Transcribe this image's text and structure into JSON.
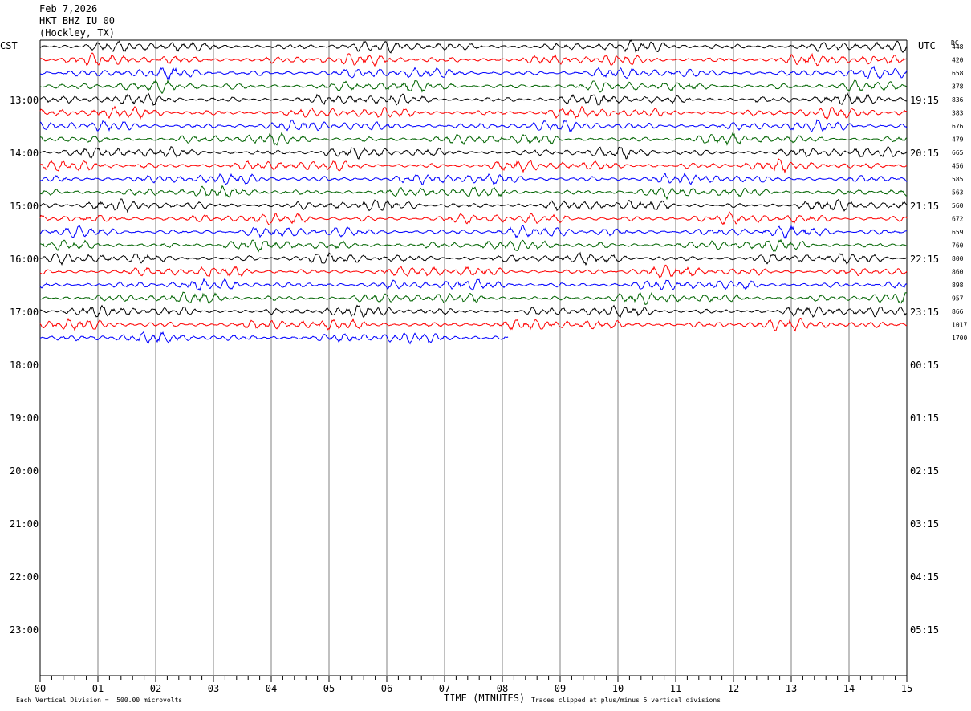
{
  "header": {
    "date": "Feb 7,2026",
    "station": "HKT BHZ IU 00",
    "location": "(Hockley, TX)"
  },
  "left_tz": "CST",
  "right_tz": "UTC",
  "dc_label": "DC",
  "footer": {
    "left": "Each Vertical Division =  500.00 microvolts",
    "right": "Traces clipped at plus/minus 5 vertical divisions"
  },
  "colors": {
    "black": "#000000",
    "red": "#ff0000",
    "blue": "#0000ff",
    "green": "#006400",
    "grid": "#808080"
  },
  "chart_data": {
    "type": "line",
    "title": "HKT BHZ IU 00 (Hockley, TX)",
    "xlabel": "TIME (MINUTES)",
    "xlim": [
      0,
      15
    ],
    "x_ticks": [
      "00",
      "01",
      "02",
      "03",
      "04",
      "05",
      "06",
      "07",
      "08",
      "09",
      "10",
      "11",
      "12",
      "13",
      "14",
      "15"
    ],
    "left_hour_labels": [
      "13:00",
      "14:00",
      "15:00",
      "16:00",
      "17:00",
      "18:00",
      "19:00",
      "20:00",
      "21:00",
      "22:00",
      "23:00"
    ],
    "right_hour_labels": [
      "19:15",
      "20:15",
      "21:15",
      "22:15",
      "23:15",
      "00:15",
      "01:15",
      "02:15",
      "03:15",
      "04:15",
      "05:15"
    ],
    "trace_colors": [
      "black",
      "red",
      "blue",
      "green"
    ],
    "trace_count": 23,
    "last_trace_end_minute": 8.1,
    "dc_offsets": [
      "448",
      "420",
      "658",
      "378",
      "836",
      "383",
      "676",
      "479",
      "665",
      "456",
      "585",
      "563",
      "560",
      "672",
      "659",
      "760",
      "800",
      "860",
      "898",
      "957",
      "866",
      "1017",
      "1700"
    ]
  }
}
